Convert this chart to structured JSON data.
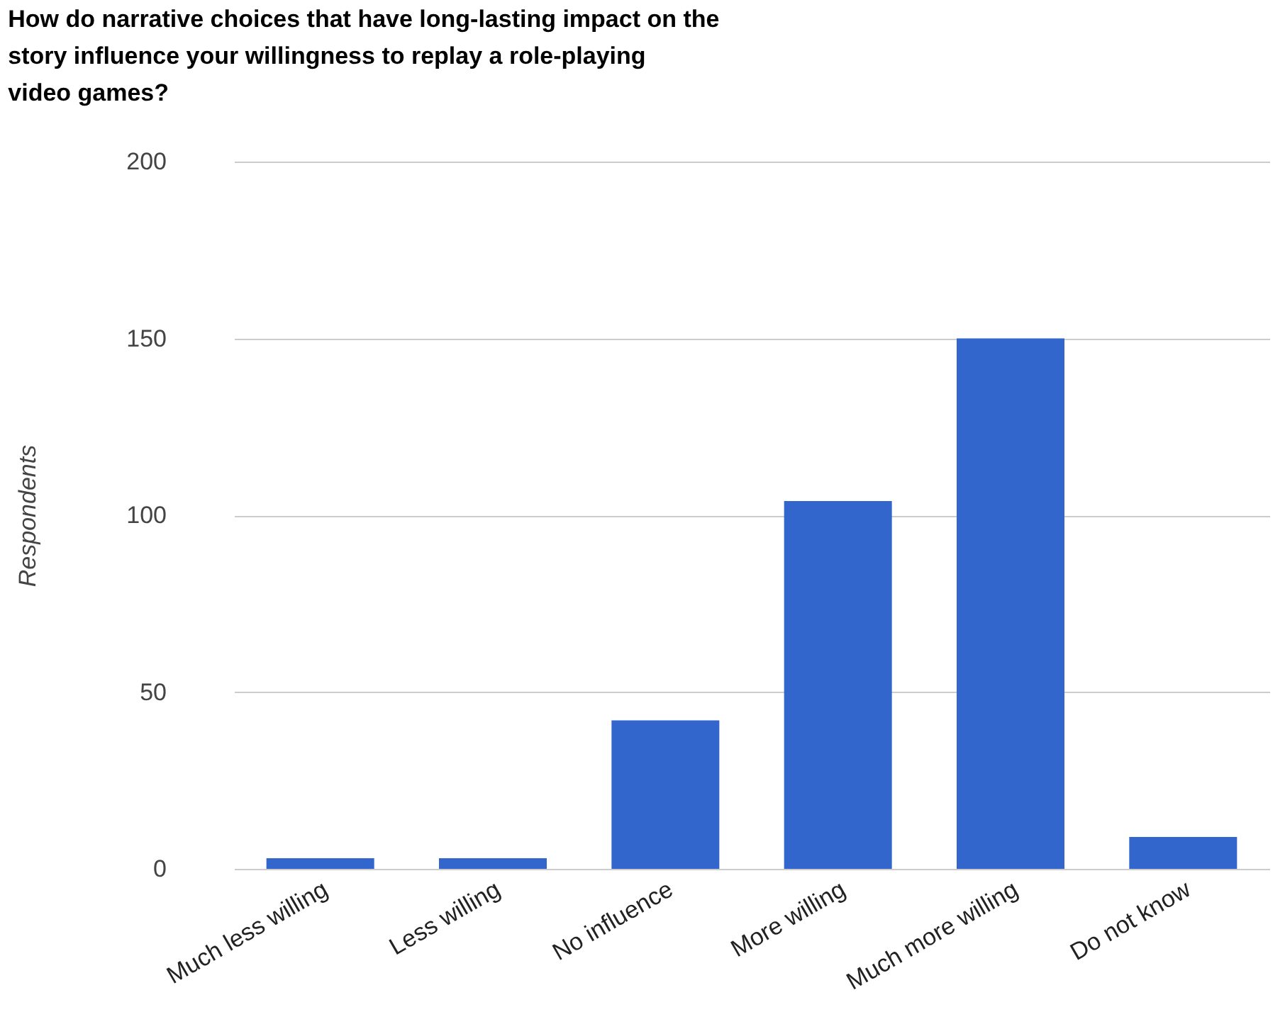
{
  "chart_data": {
    "type": "bar",
    "title": "How do narrative choices that have long-lasting impact on the story influence your willingness to replay a role-playing video games?",
    "ylabel": "Respondents",
    "categories": [
      "Much less willing",
      "Less willing",
      "No influence",
      "More willing",
      "Much more willing",
      "Do not know"
    ],
    "values": [
      3,
      3,
      42,
      104,
      150,
      9
    ],
    "color": "#3366cc",
    "ylim": [
      0,
      200
    ],
    "yticks": [
      0,
      50,
      100,
      150,
      200
    ],
    "grid": "y"
  }
}
